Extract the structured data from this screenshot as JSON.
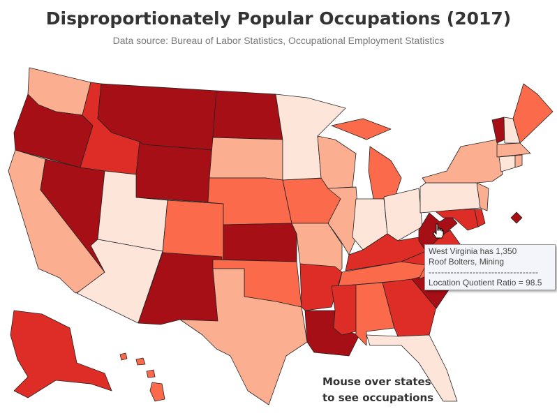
{
  "title": "Disproportionately Popular Occupations (2017)",
  "subtitle": "Data source: Bureau of Labor Statistics, Occupational Employment Statistics",
  "caption": [
    "Mouse over states",
    "to see occupations"
  ],
  "tooltip": {
    "line1": "West Virginia has 1,350",
    "line2": "Roof Bolters, Mining",
    "separator": "-----------------------------------",
    "line3": "Location Quotient Ratio = 98.5"
  },
  "level_colors": {
    "1": "#fee5d9",
    "2": "#fcae91",
    "3": "#fb6a4a",
    "4": "#de2d26",
    "5": "#a50f15"
  },
  "state_levels": {
    "WA": 2,
    "OR": 5,
    "CA": 2,
    "NV": 5,
    "ID": 4,
    "MT": 5,
    "WY": 5,
    "UT": 1,
    "AZ": 1,
    "CO": 3,
    "NM": 5,
    "ND": 5,
    "SD": 2,
    "NE": 3,
    "KS": 5,
    "OK": 3,
    "TX": 2,
    "MN": 1,
    "IA": 3,
    "MO": 2,
    "AR": 4,
    "LA": 5,
    "WI": 2,
    "IL": 2,
    "MI_U": 3,
    "MI_L": 3,
    "IN": 1,
    "OH": 1,
    "KY": 4,
    "TN": 3,
    "MS": 4,
    "AL": 3,
    "GA": 4,
    "FL": 1,
    "SC": 5,
    "NC": 3,
    "VA": 4,
    "WV": 5,
    "MD": 4,
    "DE": 4,
    "NJ": 2,
    "PA": 1,
    "NY": 2,
    "VT": 5,
    "NH": 1,
    "ME": 3,
    "MA": 2,
    "CT": 1,
    "RI": 2,
    "DC": 5,
    "AK": 4,
    "HI1": 3,
    "HI2": 3,
    "HI3": 3,
    "HI4": 3
  }
}
